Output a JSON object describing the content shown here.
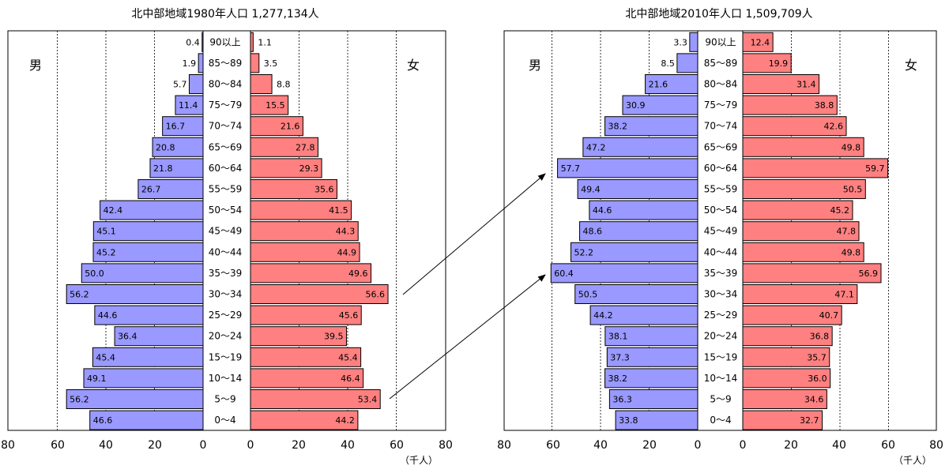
{
  "chart_data": [
    {
      "type": "bar",
      "title": "北中部地域1980年人口 1,277,134人",
      "male_label": "男",
      "female_label": "女",
      "unit_label": "（千人）",
      "xlim": [
        0,
        80
      ],
      "x_ticks": [
        "80",
        "60",
        "40",
        "20",
        "0",
        "0",
        "20",
        "40",
        "60",
        "80"
      ],
      "grid": true,
      "categories": [
        "90以上",
        "85～89",
        "80～84",
        "75～79",
        "70～74",
        "65～69",
        "60～64",
        "55～59",
        "50～54",
        "45～49",
        "40～44",
        "35～39",
        "30～34",
        "25～29",
        "20～24",
        "15～19",
        "10～14",
        "5～9",
        "0～4"
      ],
      "series": [
        {
          "name": "男",
          "color": "#9999ff",
          "values": [
            0.4,
            1.9,
            5.7,
            11.4,
            16.7,
            20.8,
            21.8,
            26.7,
            42.4,
            45.1,
            45.2,
            50.0,
            56.2,
            44.6,
            36.4,
            45.4,
            49.1,
            56.2,
            46.6
          ],
          "labels": [
            "0.4",
            "1.9",
            "5.7",
            "11.4",
            "16.7",
            "20.8",
            "21.8",
            "26.7",
            "42.4",
            "45.1",
            "45.2",
            "50.0",
            "56.2",
            "44.6",
            "36.4",
            "45.4",
            "49.1",
            "56.2",
            "46.6"
          ]
        },
        {
          "name": "女",
          "color": "#ff8080",
          "values": [
            1.1,
            3.5,
            8.8,
            15.5,
            21.6,
            27.8,
            29.3,
            35.6,
            41.5,
            44.3,
            44.9,
            49.6,
            56.6,
            45.6,
            39.5,
            45.4,
            46.4,
            53.4,
            44.2
          ],
          "labels": [
            "1.1",
            "3.5",
            "8.8",
            "15.5",
            "21.6",
            "27.8",
            "29.3",
            "35.6",
            "41.5",
            "44.3",
            "44.9",
            "49.6",
            "56.6",
            "45.6",
            "39.5",
            "45.4",
            "46.4",
            "53.4",
            "44.2"
          ]
        }
      ]
    },
    {
      "type": "bar",
      "title": "北中部地域2010年人口 1,509,709人",
      "male_label": "男",
      "female_label": "女",
      "unit_label": "（千人）",
      "xlim": [
        0,
        80
      ],
      "x_ticks": [
        "80",
        "60",
        "40",
        "20",
        "0",
        "0",
        "20",
        "40",
        "60",
        "80"
      ],
      "grid": true,
      "categories": [
        "90以上",
        "85～89",
        "80～84",
        "75～79",
        "70～74",
        "65～69",
        "60～64",
        "55～59",
        "50～54",
        "45～49",
        "40～44",
        "35～39",
        "30～34",
        "25～29",
        "20～24",
        "15～19",
        "10～14",
        "5～9",
        "0～4"
      ],
      "series": [
        {
          "name": "男",
          "color": "#9999ff",
          "values": [
            3.3,
            8.5,
            21.6,
            30.9,
            38.2,
            47.2,
            57.7,
            49.4,
            44.6,
            48.6,
            52.2,
            60.4,
            50.5,
            44.2,
            38.1,
            37.3,
            38.2,
            36.3,
            33.8
          ],
          "labels": [
            "3.3",
            "8.5",
            "21.6",
            "30.9",
            "38.2",
            "47.2",
            "57.7",
            "49.4",
            "44.6",
            "48.6",
            "52.2",
            "60.4",
            "50.5",
            "44.2",
            "38.1",
            "37.3",
            "38.2",
            "36.3",
            "33.8"
          ]
        },
        {
          "name": "女",
          "color": "#ff8080",
          "values": [
            12.4,
            19.9,
            31.4,
            38.8,
            42.6,
            49.8,
            59.7,
            50.5,
            45.2,
            47.8,
            49.8,
            56.9,
            47.1,
            40.7,
            36.8,
            35.7,
            36.0,
            34.6,
            32.7
          ],
          "labels": [
            "12.4",
            "19.9",
            "31.4",
            "38.8",
            "42.6",
            "49.8",
            "59.7",
            "50.5",
            "45.2",
            "47.8",
            "49.8",
            "56.9",
            "47.1",
            "40.7",
            "36.8",
            "35.7",
            "36.0",
            "34.6",
            "32.7"
          ]
        }
      ]
    }
  ]
}
